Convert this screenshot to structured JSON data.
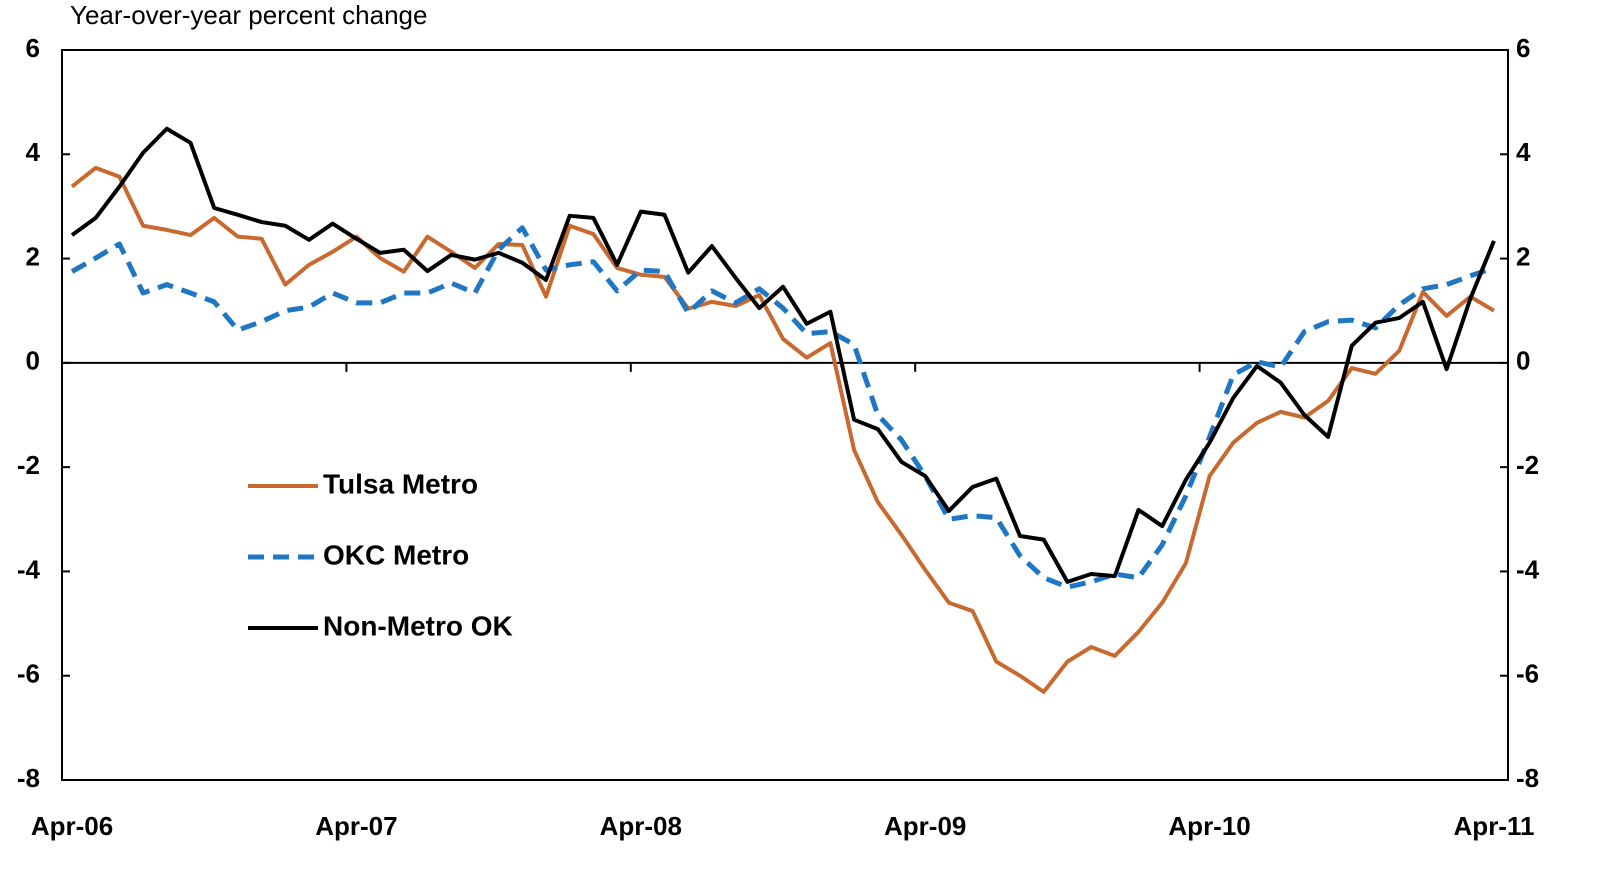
{
  "chart_data": {
    "type": "line",
    "y_axis_label": "Year-over-year percent change",
    "categories": [
      "Apr-06",
      null,
      null,
      null,
      null,
      null,
      null,
      null,
      null,
      null,
      null,
      null,
      "Apr-07",
      null,
      null,
      null,
      null,
      null,
      null,
      null,
      null,
      null,
      null,
      null,
      "Apr-08",
      null,
      null,
      null,
      null,
      null,
      null,
      null,
      null,
      null,
      null,
      null,
      "Apr-09",
      null,
      null,
      null,
      null,
      null,
      null,
      null,
      null,
      null,
      null,
      null,
      "Apr-10",
      null,
      null,
      null,
      null,
      null,
      null,
      null,
      null,
      null,
      null,
      null,
      "Apr-11"
    ],
    "series": [
      {
        "name": "Tulsa Metro",
        "color": "#c8692f",
        "line_style": "solid",
        "values": [
          3.38,
          3.74,
          3.57,
          2.63,
          2.55,
          2.45,
          2.78,
          2.42,
          2.38,
          1.5,
          1.88,
          2.13,
          2.42,
          2.01,
          1.75,
          2.42,
          2.13,
          1.82,
          2.28,
          2.26,
          1.27,
          2.63,
          2.47,
          1.82,
          1.69,
          1.65,
          1.04,
          1.17,
          1.09,
          1.3,
          0.46,
          0.1,
          0.38,
          -1.67,
          -2.67,
          -3.3,
          -3.97,
          -4.6,
          -4.76,
          -5.73,
          -6.0,
          -6.31,
          -5.73,
          -5.45,
          -5.62,
          -5.16,
          -4.6,
          -3.84,
          -2.17,
          -1.53,
          -1.15,
          -0.94,
          -1.05,
          -0.73,
          -0.1,
          -0.21,
          0.23,
          1.36,
          0.9,
          1.27,
          1.0
        ]
      },
      {
        "name": "OKC Metro",
        "color": "#1f77c4",
        "line_style": "dashed",
        "values": [
          1.75,
          2.01,
          2.28,
          1.34,
          1.5,
          1.34,
          1.17,
          0.63,
          0.79,
          1.0,
          1.07,
          1.34,
          1.15,
          1.15,
          1.34,
          1.34,
          1.53,
          1.34,
          2.17,
          2.59,
          1.78,
          1.88,
          1.94,
          1.38,
          1.78,
          1.75,
          0.96,
          1.38,
          1.15,
          1.42,
          1.05,
          0.56,
          0.6,
          0.35,
          -1.0,
          -1.48,
          -2.17,
          -3.0,
          -2.93,
          -2.97,
          -3.7,
          -4.12,
          -4.3,
          -4.2,
          -4.05,
          -4.12,
          -3.49,
          -2.55,
          -1.42,
          -0.23,
          0.02,
          -0.08,
          0.6,
          0.79,
          0.82,
          0.67,
          1.11,
          1.42,
          1.5,
          1.67,
          1.82
        ]
      },
      {
        "name": "Non-Metro OK",
        "color": "#000000",
        "line_style": "solid",
        "values": [
          2.45,
          2.78,
          3.38,
          4.03,
          4.49,
          4.22,
          2.97,
          2.84,
          2.7,
          2.63,
          2.36,
          2.67,
          2.38,
          2.11,
          2.17,
          1.76,
          2.07,
          1.98,
          2.11,
          1.92,
          1.59,
          2.82,
          2.78,
          1.88,
          2.9,
          2.84,
          1.73,
          2.24,
          1.63,
          1.05,
          1.46,
          0.75,
          0.98,
          -1.09,
          -1.27,
          -1.9,
          -2.17,
          -2.84,
          -2.38,
          -2.22,
          -3.32,
          -3.39,
          -4.2,
          -4.05,
          -4.09,
          -2.82,
          -3.13,
          -2.24,
          -1.53,
          -0.67,
          -0.06,
          -0.38,
          -1.0,
          -1.42,
          0.33,
          0.77,
          0.86,
          1.17,
          -0.12,
          1.23,
          2.34
        ]
      }
    ],
    "ylim": [
      -8,
      6
    ],
    "yticks": [
      6,
      4,
      2,
      0,
      -2,
      -4,
      -6,
      -8
    ],
    "y2lim": [
      -8,
      6
    ],
    "y2ticks": [
      6,
      4,
      2,
      0,
      -2,
      -4,
      -6,
      -8
    ],
    "grid": false,
    "legend": "left"
  }
}
